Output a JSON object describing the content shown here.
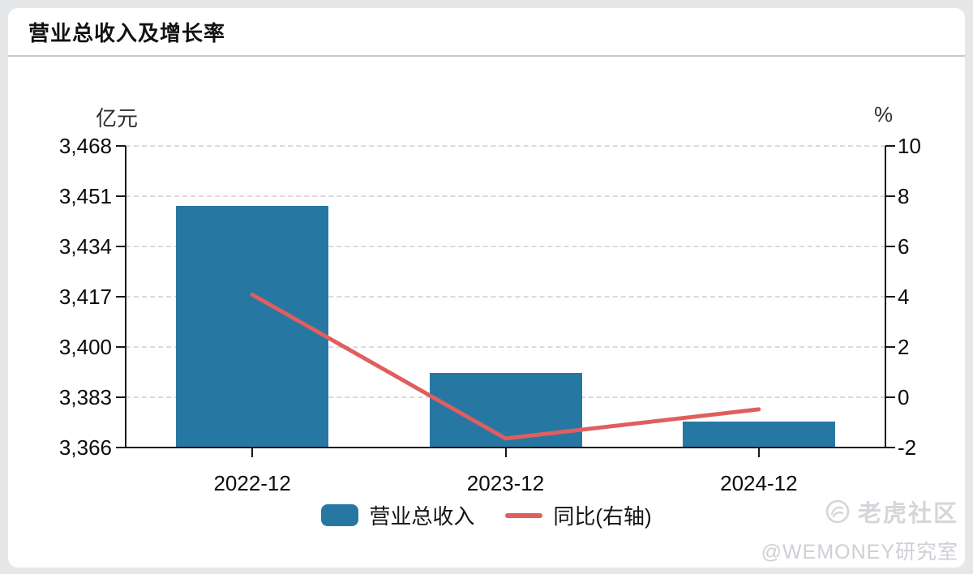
{
  "page": {
    "title": "营业总收入及增长率"
  },
  "chart_data": {
    "type": "bar",
    "title": "营业总收入及增长率",
    "categories": [
      "2022-12",
      "2023-12",
      "2024-12"
    ],
    "series": [
      {
        "name": "营业总收入",
        "type": "bar",
        "axis": "left",
        "unit": "亿元",
        "values": [
          3447.8,
          3391.2,
          3374.9
        ],
        "color": "#2678A3"
      },
      {
        "name": "同比(右轴)",
        "type": "line",
        "axis": "right",
        "unit": "%",
        "values": [
          4.08,
          -1.64,
          -0.48
        ],
        "color": "#E05E5E"
      }
    ],
    "left_axis": {
      "label": "亿元",
      "min": 3366,
      "max": 3468,
      "ticks": [
        "3,468",
        "3,451",
        "3,434",
        "3,417",
        "3,400",
        "3,383",
        "3,366"
      ]
    },
    "right_axis": {
      "label": "%",
      "min": -2,
      "max": 10,
      "ticks": [
        "10",
        "8",
        "6",
        "4",
        "2",
        "0",
        "-2"
      ]
    },
    "grid": "horizontal-dashed",
    "legend_position": "bottom-center"
  },
  "watermark": {
    "brand": "老虎社区",
    "handle": "@WEMONEY研究室"
  },
  "colors": {
    "bar": "#2678A3",
    "line": "#E05E5E",
    "axis": "#17181A",
    "grid": "#DADBDD",
    "page_background": "#E5E7E9",
    "card_background": "#FFFFFF",
    "watermark_text": "#D4D6DA"
  }
}
